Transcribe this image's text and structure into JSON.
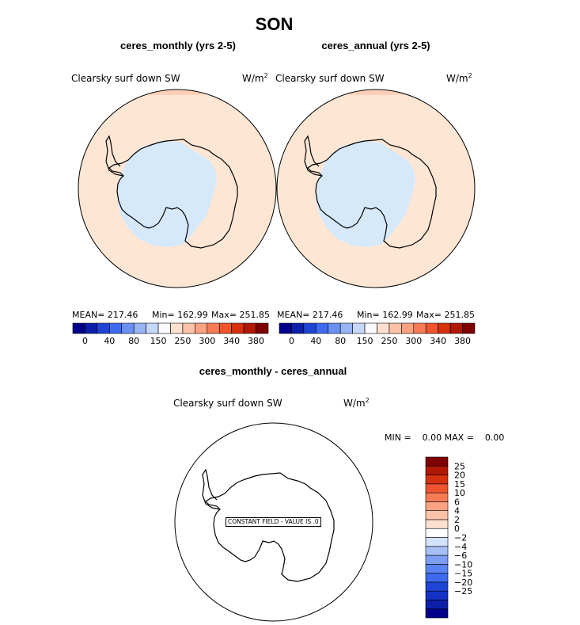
{
  "season": "SON",
  "units_base": "W/m",
  "units_exp": "2",
  "panels": [
    {
      "title": "ceres_monthly (yrs 2-5)",
      "variable": "Clearsky surf down SW",
      "stats": {
        "mean": "MEAN= 217.46",
        "min": "Min= 162.99",
        "max": "Max= 251.85"
      }
    },
    {
      "title": "ceres_annual (yrs 2-5)",
      "variable": "Clearsky surf down SW",
      "stats": {
        "mean": "MEAN= 217.46",
        "min": "Min= 162.99",
        "max": "Max= 251.85"
      }
    }
  ],
  "diff_panel": {
    "title": "ceres_monthly - ceres_annual",
    "variable": "Clearsky surf down SW",
    "stats": "MIN =    0.00 MAX =    0.00",
    "constant_label": "CONSTANT FIELD - VALUE IS .0"
  },
  "colorbar_main": {
    "colors": [
      "#00008b",
      "#0b1fa8",
      "#1f45d6",
      "#3d6af0",
      "#6a90f2",
      "#98b4f5",
      "#c6d8fa",
      "#fbfbff",
      "#fde0cf",
      "#fcc3a9",
      "#fba282",
      "#f77c56",
      "#f0542e",
      "#d5300f",
      "#b21806",
      "#7f0000"
    ],
    "labels": [
      "0",
      "40",
      "80",
      "150",
      "250",
      "300",
      "340",
      "380"
    ]
  },
  "colorbar_diff": {
    "colors": [
      "#00008b",
      "#0b1fa8",
      "#1532c6",
      "#1f45d6",
      "#3d6af0",
      "#5a82f1",
      "#7d9ef3",
      "#a6c0f6",
      "#d3e2fb",
      "#ffffff",
      "#fde0cf",
      "#fcc3a9",
      "#fba282",
      "#f77c56",
      "#f0542e",
      "#d5300f",
      "#b21806",
      "#7f0000"
    ],
    "labels": [
      "25",
      "20",
      "15",
      "10",
      "6",
      "4",
      "2",
      "0",
      "−2",
      "−4",
      "−6",
      "−10",
      "−15",
      "−20",
      "−25"
    ]
  },
  "map_colors": {
    "ocean": "#fde6d4",
    "ice": "#d6e9fb",
    "rim": "#fcd0b8"
  }
}
